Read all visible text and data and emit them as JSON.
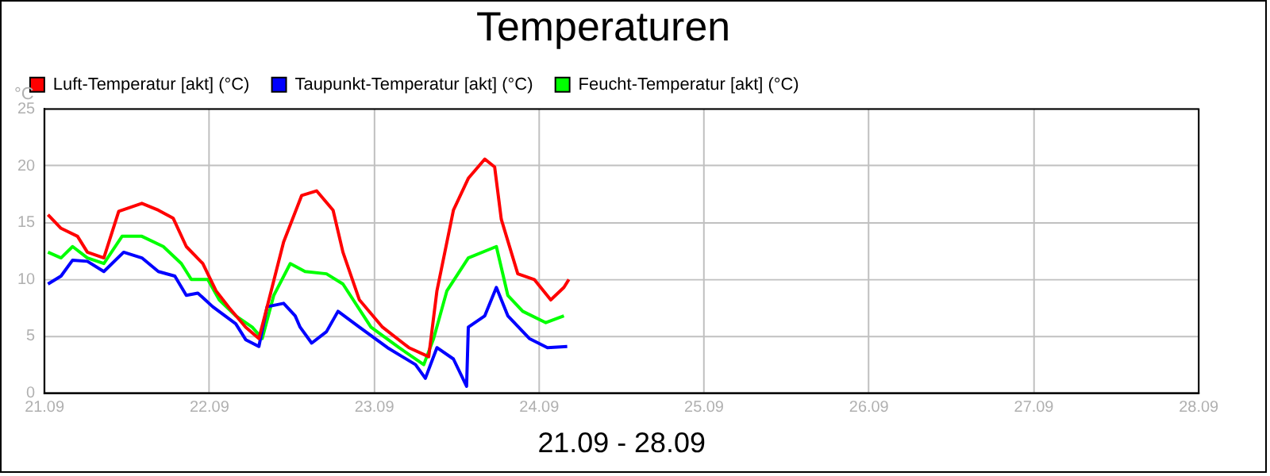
{
  "chart_data": {
    "type": "line",
    "title": "Temperaturen",
    "xlabel": "21.09 - 28.09",
    "ylabel": "°C",
    "xlim": [
      "--09-21",
      "--09-28"
    ],
    "xticks": [
      {
        "value": "--09-21",
        "label": "21.09"
      },
      {
        "value": "--09-22",
        "label": "22.09"
      },
      {
        "value": "--09-23",
        "label": "23.09"
      },
      {
        "value": "--09-24",
        "label": "24.09"
      },
      {
        "value": "--09-25",
        "label": "25.09"
      },
      {
        "value": "--09-26",
        "label": "26.09"
      },
      {
        "value": "--09-27",
        "label": "27.09"
      },
      {
        "value": "--09-28",
        "label": "28.09"
      }
    ],
    "ylim": [
      0,
      25
    ],
    "yticks": [
      0,
      5,
      10,
      15,
      20,
      25
    ],
    "grid": true,
    "legend": "top left",
    "series": [
      {
        "name": "Luft-Temperatur [akt] (°C)",
        "color": "#ff0000",
        "x": [
          "--09-21T00:30",
          "--09-21T02:24",
          "--09-21T04:48",
          "--09-21T06:14",
          "--09-21T08:38",
          "--09-21T10:48",
          "--09-21T14:10",
          "--09-21T16:34",
          "--09-21T18:43",
          "--09-21T20:38",
          "--09-21T23:02",
          "--09-22T00:58",
          "--09-22T02:53",
          "--09-22T05:17",
          "--09-22T07:12",
          "--09-22T08:24",
          "--09-22T10:48",
          "--09-22T13:26",
          "--09-22T15:36",
          "--09-22T18:00",
          "--09-22T19:26",
          "--09-22T21:50",
          "--09-23T01:12",
          "--09-23T05:02",
          "--09-23T07:55",
          "--09-23T09:07",
          "--09-23T11:31",
          "--09-23T13:41",
          "--09-23T16:05",
          "--09-23T17:31",
          "--09-23T18:29",
          "--09-23T20:53",
          "--09-23T23:17",
          "--09-24T01:41",
          "--09-24T03:36",
          "--09-24T04:19"
        ],
        "values": [
          15.7,
          14.5,
          13.8,
          12.4,
          11.9,
          16,
          16.7,
          16.1,
          15.4,
          12.9,
          11.4,
          9,
          7.5,
          5.8,
          4.8,
          7.6,
          13.3,
          17.4,
          17.8,
          16.1,
          12.4,
          8.2,
          5.8,
          4,
          3.2,
          9,
          16.1,
          18.9,
          20.6,
          19.9,
          15.3,
          10.5,
          10,
          8.2,
          9.3,
          10
        ]
      },
      {
        "name": "Taupunkt-Temperatur [akt] (°C)",
        "color": "#0000ff",
        "x": [
          "--09-21T00:30",
          "--09-21T02:24",
          "--09-21T04:05",
          "--09-21T06:14",
          "--09-21T08:38",
          "--09-21T11:31",
          "--09-21T14:10",
          "--09-21T16:34",
          "--09-21T18:58",
          "--09-21T20:38",
          "--09-21T22:19",
          "--09-22T00:29",
          "--09-22T03:50",
          "--09-22T05:17",
          "--09-22T07:12",
          "--09-22T08:24",
          "--09-22T10:48",
          "--09-22T12:29",
          "--09-22T13:12",
          "--09-22T14:53",
          "--09-22T17:02",
          "--09-22T18:43",
          "--09-22T21:50",
          "--09-23T01:55",
          "--09-23T06:00",
          "--09-23T07:26",
          "--09-23T09:07",
          "--09-23T11:31",
          "--09-23T13:26",
          "--09-23T13:41",
          "--09-23T16:05",
          "--09-23T17:46",
          "--09-23T19:26",
          "--09-23T22:34",
          "--09-24T01:12",
          "--09-24T04:05"
        ],
        "values": [
          9.6,
          10.3,
          11.7,
          11.6,
          10.7,
          12.4,
          11.9,
          10.7,
          10.3,
          8.6,
          8.8,
          7.6,
          6.1,
          4.7,
          4.1,
          7.6,
          7.9,
          6.8,
          5.8,
          4.4,
          5.4,
          7.2,
          5.8,
          4,
          2.5,
          1.3,
          4,
          3,
          0.6,
          5.8,
          6.8,
          9.3,
          6.8,
          4.8,
          4,
          4.1
        ]
      },
      {
        "name": "Feucht-Temperatur [akt] (°C)",
        "color": "#00ff00",
        "x": [
          "--09-21T00:30",
          "--09-21T02:24",
          "--09-21T04:05",
          "--09-21T06:14",
          "--09-21T08:38",
          "--09-21T11:17",
          "--09-21T14:10",
          "--09-21T17:17",
          "--09-21T19:55",
          "--09-21T21:22",
          "--09-21T23:46",
          "--09-22T01:26",
          "--09-22T03:50",
          "--09-22T06:14",
          "--09-22T07:41",
          "--09-22T09:22",
          "--09-22T11:46",
          "--09-22T13:55",
          "--09-22T17:02",
          "--09-22T19:26",
          "--09-22T23:31",
          "--09-23T03:36",
          "--09-23T07:12",
          "--09-23T08:38",
          "--09-23T10:34",
          "--09-23T13:41",
          "--09-23T17:46",
          "--09-23T19:26",
          "--09-23T21:36",
          "--09-24T00:58",
          "--09-24T03:36"
        ],
        "values": [
          12.4,
          11.9,
          12.9,
          11.9,
          11.4,
          13.8,
          13.8,
          12.9,
          11.4,
          10,
          10,
          8.2,
          6.8,
          5.8,
          4.8,
          8.6,
          11.4,
          10.7,
          10.5,
          9.6,
          5.8,
          4,
          2.5,
          4.8,
          9,
          11.9,
          12.9,
          8.6,
          7.2,
          6.2,
          6.8
        ]
      }
    ]
  }
}
